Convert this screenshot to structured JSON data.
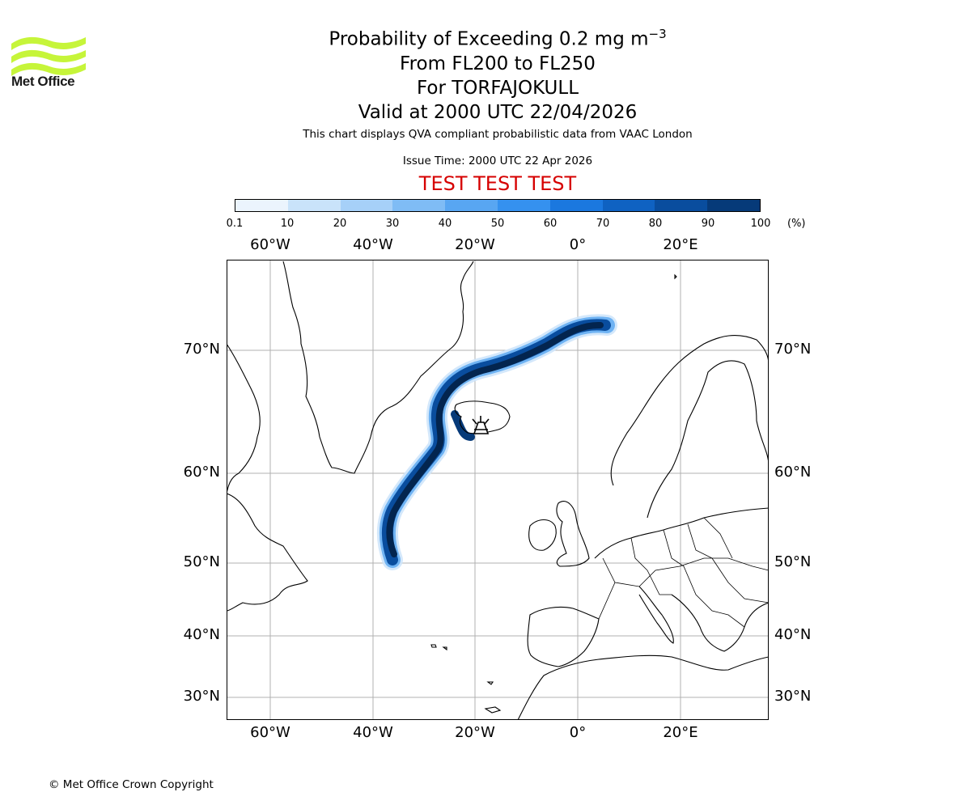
{
  "brand": {
    "logo_name": "Met Office",
    "logo_colors": [
      "#c6f53a",
      "#b0e826"
    ]
  },
  "header": {
    "title_prefix": "Probability of Exceeding 0.2 mg m",
    "title_exponent": "−3",
    "level_range": "From FL200 to FL250",
    "location": "For TORFAJOKULL",
    "valid_time": "Valid at 2000 UTC 22/04/2026",
    "description": "This chart displays QVA compliant probabilistic data from VAAC London",
    "issue_time": "Issue Time: 2000 UTC 22 Apr 2026",
    "test_banner": "TEST TEST TEST"
  },
  "colorbar": {
    "unit": "(%)",
    "ticks": [
      "0.1",
      "10",
      "20",
      "30",
      "40",
      "50",
      "60",
      "70",
      "80",
      "90",
      "100"
    ],
    "colors": [
      "#ebf4fd",
      "#c9e3fa",
      "#a6d0f8",
      "#7fbcf5",
      "#58a6f2",
      "#3591ef",
      "#1b78df",
      "#0f62c2",
      "#094d9e",
      "#063a79",
      "#03254f"
    ]
  },
  "map": {
    "longitude_labels": [
      "60°W",
      "40°W",
      "20°W",
      "0°",
      "20°E"
    ],
    "latitude_labels": [
      "70°N",
      "60°N",
      "50°N",
      "40°N",
      "30°N"
    ],
    "volcano_icon": "volcano-icon",
    "gridline_color": "#b0b0b0",
    "coastline_color": "#000000"
  },
  "footer": {
    "copyright": "© Met Office Crown Copyright"
  }
}
